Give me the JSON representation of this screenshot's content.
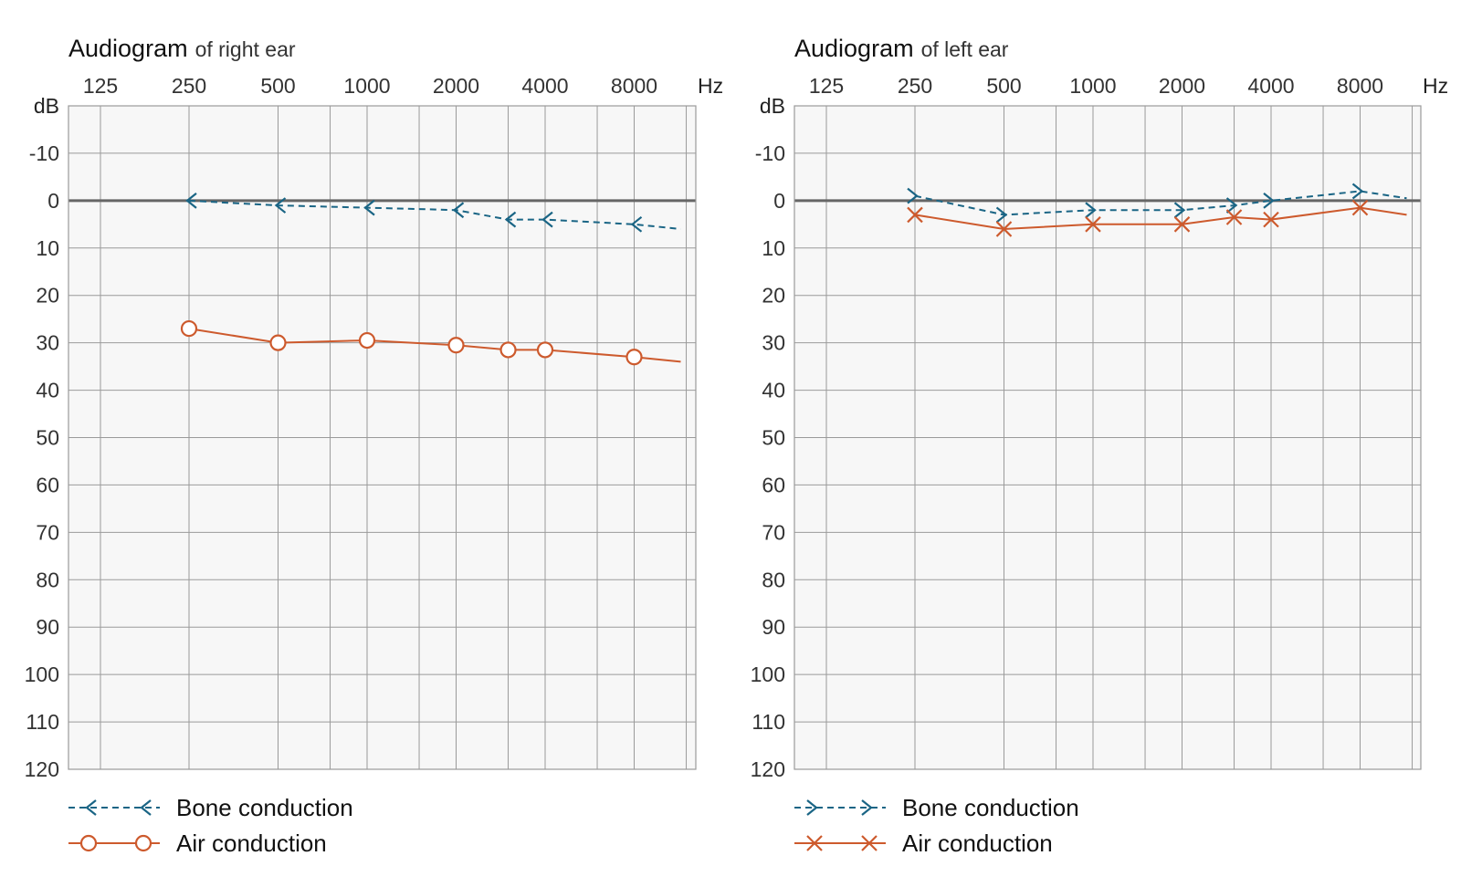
{
  "colors": {
    "bone": "#1a6585",
    "air": "#cd5a2d",
    "grid": "#9a9a9a",
    "plot_bg": "#f7f7f7",
    "zero_line": "#666666"
  },
  "chart_data": [
    {
      "type": "line",
      "title": "Audiogram",
      "subtitle": "of right ear",
      "xlabel": "Hz",
      "ylabel": "dB",
      "x_ticks": [
        "125",
        "250",
        "500",
        "1000",
        "2000",
        "4000",
        "8000"
      ],
      "y_ticks": [
        "-10",
        "0",
        "10",
        "20",
        "30",
        "40",
        "50",
        "60",
        "70",
        "80",
        "90",
        "100",
        "110",
        "120"
      ],
      "ylim": [
        -20,
        120
      ],
      "y_inverted": true,
      "x_scale": "log",
      "grid": true,
      "legend_position": "bottom-left",
      "series": [
        {
          "name": "Bone conduction",
          "marker": "left-arrow",
          "line_style": "dashed",
          "color_key": "bone",
          "points": [
            [
              250,
              0
            ],
            [
              500,
              1
            ],
            [
              1000,
              1.5
            ],
            [
              2000,
              2
            ],
            [
              3000,
              4
            ],
            [
              4000,
              4
            ],
            [
              8000,
              5
            ]
          ],
          "tail": [
            12000,
            6
          ]
        },
        {
          "name": "Air conduction",
          "marker": "circle",
          "line_style": "solid",
          "color_key": "air",
          "points": [
            [
              250,
              27
            ],
            [
              500,
              30
            ],
            [
              1000,
              29.5
            ],
            [
              2000,
              30.5
            ],
            [
              3000,
              31.5
            ],
            [
              4000,
              31.5
            ],
            [
              8000,
              33
            ]
          ],
          "tail": [
            12000,
            34
          ]
        }
      ]
    },
    {
      "type": "line",
      "title": "Audiogram",
      "subtitle": "of left ear",
      "xlabel": "Hz",
      "ylabel": "dB",
      "x_ticks": [
        "125",
        "250",
        "500",
        "1000",
        "2000",
        "4000",
        "8000"
      ],
      "y_ticks": [
        "-10",
        "0",
        "10",
        "20",
        "30",
        "40",
        "50",
        "60",
        "70",
        "80",
        "90",
        "100",
        "110",
        "120"
      ],
      "ylim": [
        -20,
        120
      ],
      "y_inverted": true,
      "x_scale": "log",
      "grid": true,
      "legend_position": "bottom-left",
      "series": [
        {
          "name": "Bone conduction",
          "marker": "right-arrow",
          "line_style": "dashed",
          "color_key": "bone",
          "points": [
            [
              250,
              -1
            ],
            [
              500,
              3
            ],
            [
              1000,
              2
            ],
            [
              2000,
              2
            ],
            [
              3000,
              1
            ],
            [
              4000,
              0
            ],
            [
              8000,
              -2
            ]
          ],
          "tail": [
            12000,
            -0.5
          ]
        },
        {
          "name": "Air conduction",
          "marker": "cross",
          "line_style": "solid",
          "color_key": "air",
          "points": [
            [
              250,
              3
            ],
            [
              500,
              6
            ],
            [
              1000,
              5
            ],
            [
              2000,
              5
            ],
            [
              3000,
              3.5
            ],
            [
              4000,
              4
            ],
            [
              8000,
              1.5
            ]
          ],
          "tail": [
            12000,
            3
          ]
        }
      ]
    }
  ]
}
